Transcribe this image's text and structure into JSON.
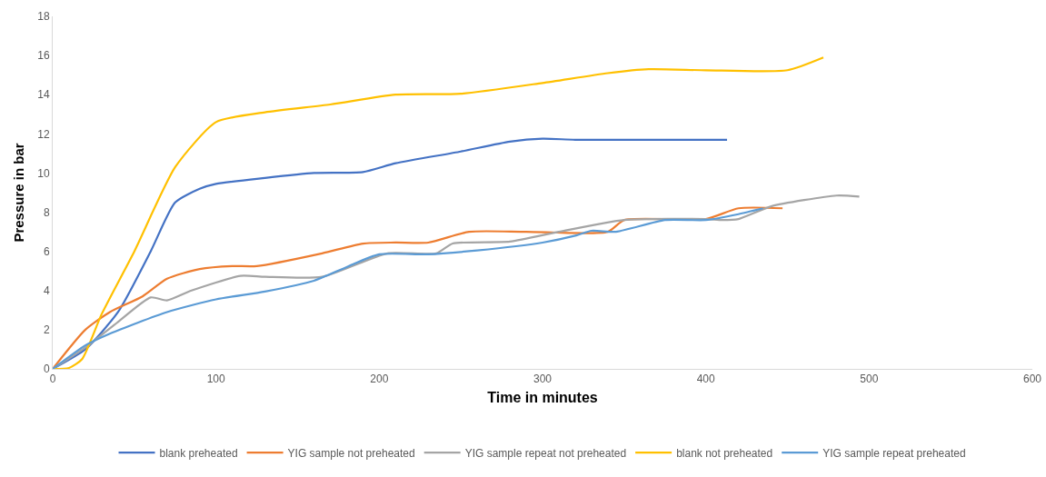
{
  "chart_data": {
    "type": "line",
    "xlabel": "Time in minutes",
    "ylabel": "Pressure in bar",
    "xlim": [
      0,
      600
    ],
    "xticks": [
      0,
      100,
      200,
      300,
      400,
      500,
      600
    ],
    "ylim": [
      0,
      18
    ],
    "yticks": [
      0,
      2,
      4,
      6,
      8,
      10,
      12,
      14,
      16,
      18
    ],
    "grid": false,
    "legend": "bottom",
    "marker": "none",
    "line_style": "solid",
    "series": [
      {
        "name": "blank preheated",
        "color": "#4472c4",
        "x": [
          0,
          20,
          40,
          60,
          75,
          90,
          100,
          130,
          160,
          190,
          210,
          250,
          280,
          300,
          320,
          413
        ],
        "values": [
          0,
          1,
          2.9,
          6,
          8.5,
          9.2,
          9.45,
          9.75,
          10,
          10.05,
          10.5,
          11.1,
          11.6,
          11.75,
          11.7,
          11.7
        ]
      },
      {
        "name": "YIG sample not preheated",
        "color": "#ed7d31",
        "x": [
          0,
          20,
          35,
          55,
          70,
          90,
          110,
          125,
          165,
          190,
          210,
          230,
          255,
          290,
          340,
          350,
          400,
          420,
          447
        ],
        "values": [
          0,
          2,
          2.9,
          3.7,
          4.6,
          5.1,
          5.25,
          5.25,
          5.9,
          6.4,
          6.45,
          6.45,
          7,
          7,
          7,
          7.6,
          7.65,
          8.2,
          8.2
        ]
      },
      {
        "name": "YIG sample repeat not preheated",
        "color": "#a5a5a5",
        "x": [
          0,
          20,
          40,
          60,
          70,
          85,
          115,
          130,
          165,
          205,
          235,
          245,
          280,
          310,
          350,
          400,
          410,
          420,
          440,
          480,
          494
        ],
        "values": [
          0,
          1.1,
          2.4,
          3.65,
          3.5,
          4,
          4.75,
          4.7,
          4.7,
          5.9,
          5.9,
          6.4,
          6.5,
          7,
          7.6,
          7.65,
          7.6,
          7.65,
          8.3,
          8.85,
          8.8
        ]
      },
      {
        "name": "blank not preheated",
        "color": "#ffc000",
        "x": [
          0,
          10,
          18,
          30,
          50,
          75,
          100,
          130,
          170,
          210,
          250,
          300,
          340,
          365,
          400,
          450,
          472
        ],
        "values": [
          0,
          0.05,
          0.5,
          2.8,
          6,
          10.3,
          12.6,
          13.1,
          13.5,
          14,
          14.05,
          14.6,
          15.1,
          15.3,
          15.25,
          15.25,
          15.9
        ]
      },
      {
        "name": "YIG sample repeat preheated",
        "color": "#5b9bd5",
        "x": [
          0,
          20,
          35,
          70,
          100,
          130,
          160,
          180,
          200,
          230,
          260,
          300,
          320,
          330,
          345,
          375,
          400,
          420,
          435
        ],
        "values": [
          0,
          1.2,
          1.8,
          2.9,
          3.55,
          3.95,
          4.5,
          5.2,
          5.85,
          5.85,
          6.05,
          6.45,
          6.8,
          7.05,
          7,
          7.6,
          7.6,
          7.9,
          8.2
        ]
      }
    ]
  }
}
